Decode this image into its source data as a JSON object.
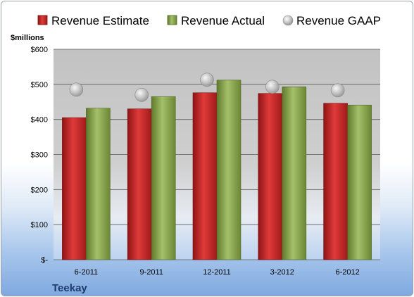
{
  "chart_data": {
    "type": "bar",
    "unit_label": "$millions",
    "company": "Teekay",
    "categories": [
      "6-2011",
      "9-2011",
      "12-2011",
      "3-2012",
      "6-2012"
    ],
    "series": [
      {
        "name": "Revenue Estimate",
        "kind": "bar",
        "color": "#cc2a2a",
        "values": [
          405,
          430,
          476,
          474,
          446
        ]
      },
      {
        "name": "Revenue Actual",
        "kind": "bar",
        "color": "#8fab55",
        "values": [
          432,
          465,
          512,
          493,
          441
        ]
      },
      {
        "name": "Revenue GAAP",
        "kind": "marker",
        "color": "#c8c8c8",
        "values": [
          485,
          470,
          513,
          493,
          483
        ]
      }
    ],
    "yticks": [
      "$-",
      "$100",
      "$200",
      "$300",
      "$400",
      "$500",
      "$600"
    ],
    "ylim": [
      0,
      600
    ],
    "grid": true,
    "legend_position": "top"
  }
}
